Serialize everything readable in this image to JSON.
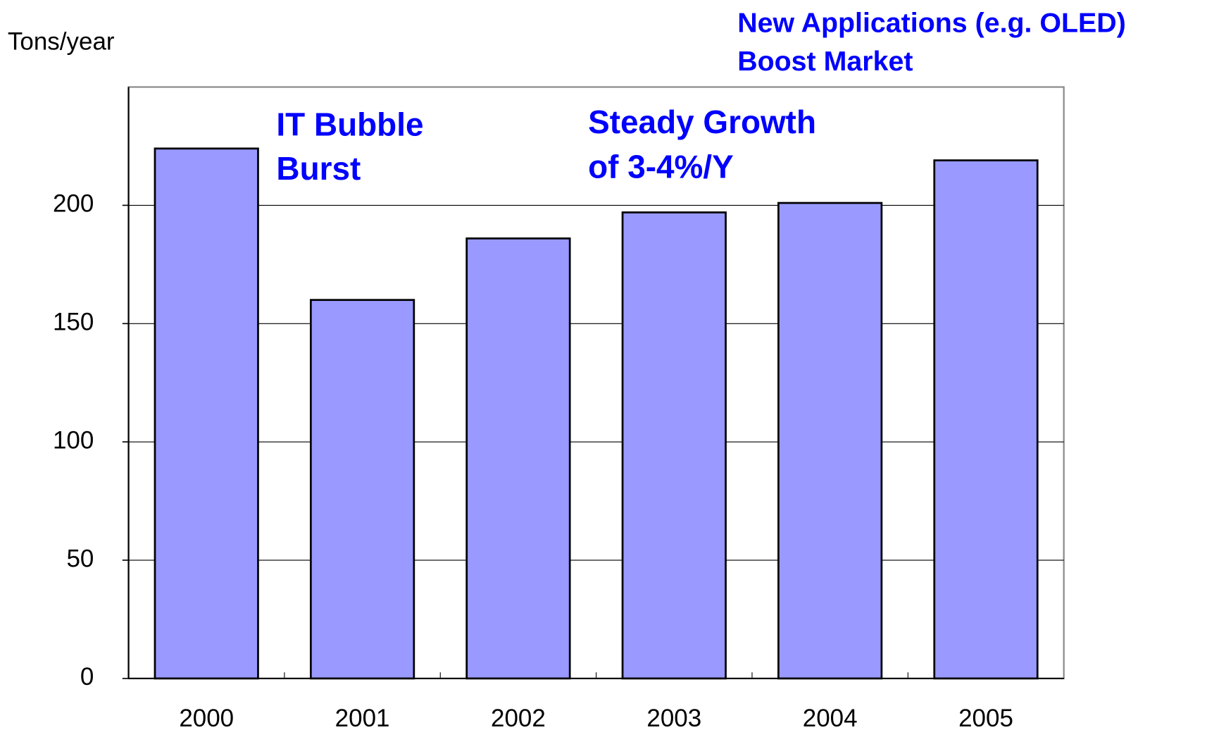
{
  "chart_data": {
    "type": "bar",
    "y_label": "Tons/year",
    "annotations": [
      "IT Bubble",
      "Burst",
      "Steady Growth",
      "of 3-4%/Y",
      "New Applications (e.g. OLED)",
      "Boost Market"
    ],
    "categories": [
      "2000",
      "2001",
      "2002",
      "2003",
      "2004",
      "2005"
    ],
    "values": [
      224,
      160,
      186,
      197,
      201,
      219
    ],
    "color": "#9999ff",
    "ylim": [
      0,
      250
    ],
    "yticks": [
      0,
      50,
      100,
      150,
      200
    ],
    "grid": true
  }
}
